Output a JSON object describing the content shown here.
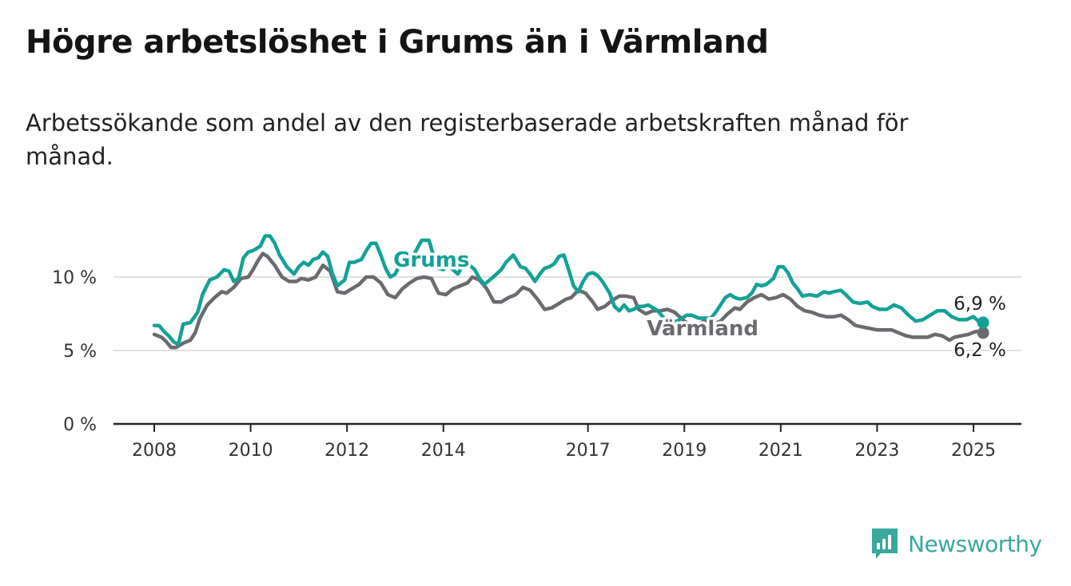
{
  "title": "Högre arbetslöshet i Grums än i Värmland",
  "subtitle": "Arbetssökande som andel av den registerbaserade arbetskraften månad för månad.",
  "brand": {
    "name": "Newsworthy",
    "icon": "newsworthy-logo-icon"
  },
  "colors": {
    "grums": "#13a197",
    "varmland": "#6b6a6f",
    "grid": "#d6d6d6",
    "axis": "#222222"
  },
  "chart_data": {
    "type": "line",
    "xlim": [
      2008,
      2025.5
    ],
    "ylim": [
      0,
      12.8
    ],
    "x_ticks": [
      {
        "value": 2008,
        "label": "2008"
      },
      {
        "value": 2010,
        "label": "2010"
      },
      {
        "value": 2012,
        "label": "2012"
      },
      {
        "value": 2014,
        "label": "2014"
      },
      {
        "value": 2017,
        "label": "2017"
      },
      {
        "value": 2019,
        "label": "2019"
      },
      {
        "value": 2021,
        "label": "2021"
      },
      {
        "value": 2023,
        "label": "2023"
      },
      {
        "value": 2025,
        "label": "2025"
      }
    ],
    "y_ticks": [
      {
        "value": 0,
        "label": "0 %"
      },
      {
        "value": 5,
        "label": "5 %"
      },
      {
        "value": 10,
        "label": "10 %"
      }
    ],
    "grid": true,
    "series": [
      {
        "name": "Grums",
        "color": "#13a197",
        "end_label": "6,9 %",
        "points": [
          [
            2008.0,
            6.7
          ],
          [
            2008.1,
            6.7
          ],
          [
            2008.2,
            6.3
          ],
          [
            2008.3,
            6.0
          ],
          [
            2008.4,
            5.6
          ],
          [
            2008.5,
            5.4
          ],
          [
            2008.6,
            6.8
          ],
          [
            2008.75,
            6.9
          ],
          [
            2008.9,
            7.6
          ],
          [
            2009.0,
            8.8
          ],
          [
            2009.15,
            9.8
          ],
          [
            2009.3,
            10.0
          ],
          [
            2009.45,
            10.5
          ],
          [
            2009.55,
            10.4
          ],
          [
            2009.65,
            9.7
          ],
          [
            2009.75,
            9.9
          ],
          [
            2009.85,
            11.3
          ],
          [
            2009.95,
            11.7
          ],
          [
            2010.05,
            11.8
          ],
          [
            2010.2,
            12.1
          ],
          [
            2010.3,
            12.8
          ],
          [
            2010.4,
            12.8
          ],
          [
            2010.5,
            12.3
          ],
          [
            2010.6,
            11.5
          ],
          [
            2010.75,
            10.7
          ],
          [
            2010.9,
            10.2
          ],
          [
            2011.0,
            10.7
          ],
          [
            2011.1,
            11.0
          ],
          [
            2011.2,
            10.8
          ],
          [
            2011.3,
            11.2
          ],
          [
            2011.4,
            11.3
          ],
          [
            2011.5,
            11.7
          ],
          [
            2011.6,
            11.4
          ],
          [
            2011.7,
            10.2
          ],
          [
            2011.8,
            9.4
          ],
          [
            2011.95,
            9.8
          ],
          [
            2012.05,
            11.0
          ],
          [
            2012.15,
            11.0
          ],
          [
            2012.3,
            11.2
          ],
          [
            2012.4,
            11.8
          ],
          [
            2012.5,
            12.3
          ],
          [
            2012.6,
            12.3
          ],
          [
            2012.7,
            11.5
          ],
          [
            2012.8,
            10.6
          ],
          [
            2012.9,
            10.0
          ],
          [
            2013.0,
            10.2
          ],
          [
            2013.1,
            10.9
          ],
          [
            2013.2,
            11.2
          ],
          [
            2013.35,
            11.3
          ],
          [
            2013.45,
            11.9
          ],
          [
            2013.55,
            12.5
          ],
          [
            2013.7,
            12.5
          ],
          [
            2013.8,
            11.4
          ],
          [
            2013.9,
            10.6
          ],
          [
            2014.0,
            10.5
          ],
          [
            2014.1,
            10.9
          ],
          [
            2014.2,
            10.5
          ],
          [
            2014.3,
            10.2
          ],
          [
            2014.4,
            10.8
          ],
          [
            2014.55,
            10.8
          ],
          [
            2014.65,
            10.5
          ],
          [
            2014.75,
            9.9
          ],
          [
            2014.85,
            9.5
          ],
          [
            2015.0,
            9.9
          ],
          [
            2015.1,
            10.2
          ],
          [
            2015.2,
            10.5
          ],
          [
            2015.3,
            11.0
          ],
          [
            2015.45,
            11.5
          ],
          [
            2015.6,
            10.7
          ],
          [
            2015.7,
            10.6
          ],
          [
            2015.8,
            10.2
          ],
          [
            2015.9,
            9.7
          ],
          [
            2016.0,
            10.2
          ],
          [
            2016.1,
            10.6
          ],
          [
            2016.2,
            10.7
          ],
          [
            2016.3,
            10.9
          ],
          [
            2016.4,
            11.4
          ],
          [
            2016.5,
            11.5
          ],
          [
            2016.6,
            10.5
          ],
          [
            2016.7,
            9.4
          ],
          [
            2016.8,
            9.0
          ],
          [
            2016.9,
            9.7
          ],
          [
            2017.0,
            10.2
          ],
          [
            2017.1,
            10.3
          ],
          [
            2017.2,
            10.1
          ],
          [
            2017.3,
            9.7
          ],
          [
            2017.45,
            8.9
          ],
          [
            2017.55,
            8.0
          ],
          [
            2017.65,
            7.7
          ],
          [
            2017.75,
            8.1
          ],
          [
            2017.85,
            7.7
          ],
          [
            2017.95,
            7.8
          ],
          [
            2018.05,
            8.0
          ],
          [
            2018.15,
            8.0
          ],
          [
            2018.25,
            8.1
          ],
          [
            2018.35,
            7.9
          ],
          [
            2018.45,
            7.7
          ],
          [
            2018.55,
            7.3
          ],
          [
            2018.65,
            7.1
          ],
          [
            2018.75,
            7.0
          ],
          [
            2018.85,
            7.0
          ],
          [
            2018.95,
            7.2
          ],
          [
            2019.05,
            7.4
          ],
          [
            2019.15,
            7.4
          ],
          [
            2019.3,
            7.2
          ],
          [
            2019.45,
            7.2
          ],
          [
            2019.55,
            7.2
          ],
          [
            2019.65,
            7.6
          ],
          [
            2019.75,
            8.1
          ],
          [
            2019.85,
            8.6
          ],
          [
            2019.95,
            8.8
          ],
          [
            2020.05,
            8.6
          ],
          [
            2020.15,
            8.5
          ],
          [
            2020.3,
            8.6
          ],
          [
            2020.4,
            8.9
          ],
          [
            2020.5,
            9.5
          ],
          [
            2020.6,
            9.4
          ],
          [
            2020.7,
            9.5
          ],
          [
            2020.85,
            9.9
          ],
          [
            2020.95,
            10.7
          ],
          [
            2021.05,
            10.7
          ],
          [
            2021.15,
            10.3
          ],
          [
            2021.25,
            9.6
          ],
          [
            2021.35,
            9.2
          ],
          [
            2021.45,
            8.7
          ],
          [
            2021.6,
            8.8
          ],
          [
            2021.75,
            8.7
          ],
          [
            2021.9,
            9.0
          ],
          [
            2022.0,
            8.9
          ],
          [
            2022.1,
            9.0
          ],
          [
            2022.25,
            9.1
          ],
          [
            2022.35,
            8.8
          ],
          [
            2022.5,
            8.3
          ],
          [
            2022.65,
            8.2
          ],
          [
            2022.8,
            8.3
          ],
          [
            2022.9,
            8.0
          ],
          [
            2023.05,
            7.8
          ],
          [
            2023.2,
            7.8
          ],
          [
            2023.35,
            8.1
          ],
          [
            2023.5,
            7.9
          ],
          [
            2023.65,
            7.4
          ],
          [
            2023.8,
            7.0
          ],
          [
            2023.95,
            7.1
          ],
          [
            2024.1,
            7.4
          ],
          [
            2024.25,
            7.7
          ],
          [
            2024.4,
            7.7
          ],
          [
            2024.55,
            7.3
          ],
          [
            2024.7,
            7.1
          ],
          [
            2024.85,
            7.1
          ],
          [
            2025.0,
            7.3
          ],
          [
            2025.1,
            7.0
          ],
          [
            2025.2,
            6.9
          ]
        ]
      },
      {
        "name": "Värmland",
        "color": "#6b6a6f",
        "end_label": "6,2 %",
        "points": [
          [
            2008.0,
            6.1
          ],
          [
            2008.15,
            5.9
          ],
          [
            2008.25,
            5.6
          ],
          [
            2008.35,
            5.2
          ],
          [
            2008.45,
            5.2
          ],
          [
            2008.6,
            5.5
          ],
          [
            2008.75,
            5.7
          ],
          [
            2008.85,
            6.2
          ],
          [
            2008.95,
            7.2
          ],
          [
            2009.1,
            8.1
          ],
          [
            2009.25,
            8.6
          ],
          [
            2009.4,
            9.0
          ],
          [
            2009.5,
            8.9
          ],
          [
            2009.65,
            9.3
          ],
          [
            2009.8,
            9.9
          ],
          [
            2009.95,
            10.0
          ],
          [
            2010.05,
            10.5
          ],
          [
            2010.15,
            11.1
          ],
          [
            2010.25,
            11.6
          ],
          [
            2010.35,
            11.4
          ],
          [
            2010.5,
            10.8
          ],
          [
            2010.65,
            10.0
          ],
          [
            2010.8,
            9.7
          ],
          [
            2010.95,
            9.7
          ],
          [
            2011.05,
            9.9
          ],
          [
            2011.2,
            9.8
          ],
          [
            2011.35,
            10.0
          ],
          [
            2011.5,
            10.8
          ],
          [
            2011.65,
            10.4
          ],
          [
            2011.8,
            9.0
          ],
          [
            2011.95,
            8.9
          ],
          [
            2012.1,
            9.2
          ],
          [
            2012.25,
            9.5
          ],
          [
            2012.4,
            10.0
          ],
          [
            2012.55,
            10.0
          ],
          [
            2012.7,
            9.6
          ],
          [
            2012.85,
            8.8
          ],
          [
            2013.0,
            8.6
          ],
          [
            2013.15,
            9.2
          ],
          [
            2013.3,
            9.6
          ],
          [
            2013.45,
            9.9
          ],
          [
            2013.6,
            10.0
          ],
          [
            2013.75,
            9.9
          ],
          [
            2013.9,
            8.9
          ],
          [
            2014.05,
            8.8
          ],
          [
            2014.2,
            9.2
          ],
          [
            2014.35,
            9.4
          ],
          [
            2014.5,
            9.6
          ],
          [
            2014.6,
            10.0
          ],
          [
            2014.75,
            9.8
          ],
          [
            2014.9,
            9.2
          ],
          [
            2015.05,
            8.3
          ],
          [
            2015.2,
            8.3
          ],
          [
            2015.35,
            8.6
          ],
          [
            2015.5,
            8.8
          ],
          [
            2015.65,
            9.3
          ],
          [
            2015.8,
            9.1
          ],
          [
            2015.95,
            8.5
          ],
          [
            2016.1,
            7.8
          ],
          [
            2016.25,
            7.9
          ],
          [
            2016.4,
            8.2
          ],
          [
            2016.55,
            8.5
          ],
          [
            2016.65,
            8.6
          ],
          [
            2016.8,
            9.1
          ],
          [
            2016.95,
            8.9
          ],
          [
            2017.1,
            8.3
          ],
          [
            2017.2,
            7.8
          ],
          [
            2017.35,
            8.0
          ],
          [
            2017.5,
            8.4
          ],
          [
            2017.65,
            8.7
          ],
          [
            2017.8,
            8.7
          ],
          [
            2017.95,
            8.6
          ],
          [
            2018.05,
            7.8
          ],
          [
            2018.2,
            7.5
          ],
          [
            2018.35,
            7.7
          ],
          [
            2018.5,
            7.7
          ],
          [
            2018.65,
            7.8
          ],
          [
            2018.8,
            7.6
          ],
          [
            2018.9,
            7.3
          ],
          [
            2019.0,
            7.0
          ],
          [
            2019.1,
            6.8
          ],
          [
            2019.2,
            6.7
          ],
          [
            2019.3,
            6.8
          ],
          [
            2019.4,
            7.0
          ],
          [
            2019.5,
            7.0
          ],
          [
            2019.6,
            6.8
          ],
          [
            2019.75,
            7.0
          ],
          [
            2019.9,
            7.5
          ],
          [
            2020.05,
            7.9
          ],
          [
            2020.15,
            7.8
          ],
          [
            2020.3,
            8.3
          ],
          [
            2020.45,
            8.6
          ],
          [
            2020.6,
            8.8
          ],
          [
            2020.75,
            8.5
          ],
          [
            2020.9,
            8.6
          ],
          [
            2021.05,
            8.8
          ],
          [
            2021.2,
            8.5
          ],
          [
            2021.35,
            8.0
          ],
          [
            2021.5,
            7.7
          ],
          [
            2021.65,
            7.6
          ],
          [
            2021.8,
            7.4
          ],
          [
            2021.95,
            7.3
          ],
          [
            2022.1,
            7.3
          ],
          [
            2022.25,
            7.4
          ],
          [
            2022.4,
            7.1
          ],
          [
            2022.55,
            6.7
          ],
          [
            2022.7,
            6.6
          ],
          [
            2022.85,
            6.5
          ],
          [
            2023.0,
            6.4
          ],
          [
            2023.15,
            6.4
          ],
          [
            2023.3,
            6.4
          ],
          [
            2023.45,
            6.2
          ],
          [
            2023.6,
            6.0
          ],
          [
            2023.75,
            5.9
          ],
          [
            2023.9,
            5.9
          ],
          [
            2024.05,
            5.9
          ],
          [
            2024.2,
            6.1
          ],
          [
            2024.35,
            6.0
          ],
          [
            2024.5,
            5.7
          ],
          [
            2024.6,
            5.9
          ],
          [
            2024.75,
            6.0
          ],
          [
            2024.9,
            6.1
          ],
          [
            2025.05,
            6.3
          ],
          [
            2025.2,
            6.2
          ]
        ]
      }
    ]
  }
}
